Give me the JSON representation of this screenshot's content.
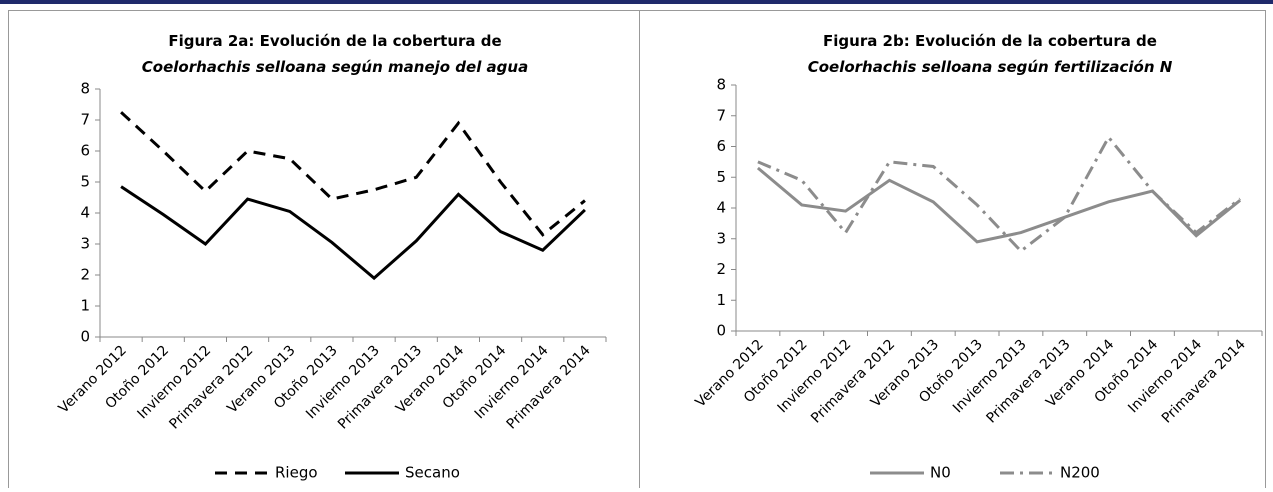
{
  "chart_data": [
    {
      "type": "line",
      "title": [
        "Figura 2a: Evolución de la cobertura de",
        "Coelorhachis selloana según manejo del agua"
      ],
      "categories": [
        "Verano 2012",
        "Otoño 2012",
        "Invierno 2012",
        "Primavera 2012",
        "Verano 2013",
        "Otoño 2013",
        "Invierno 2013",
        "Primavera 2013",
        "Verano 2014",
        "Otoño 2014",
        "Invierno 2014",
        "Primavera 2014"
      ],
      "series": [
        {
          "name": "Riego",
          "color": "#000000",
          "dash": "dashed",
          "values": [
            7.25,
            6.0,
            4.7,
            6.0,
            5.75,
            4.45,
            4.75,
            5.15,
            6.9,
            5.0,
            3.3,
            4.4
          ]
        },
        {
          "name": "Secano",
          "color": "#000000",
          "dash": "solid",
          "values": [
            4.85,
            3.95,
            3.0,
            4.45,
            4.05,
            3.05,
            1.9,
            3.1,
            4.6,
            3.4,
            2.8,
            4.1
          ]
        }
      ],
      "ylim": [
        0,
        8
      ],
      "yticks": [
        0,
        1,
        2,
        3,
        4,
        5,
        6,
        7,
        8
      ],
      "grid": false,
      "legend": "bottom"
    },
    {
      "type": "line",
      "title": [
        "Figura 2b: Evolución de la cobertura de",
        "Coelorhachis selloana según fertilización  N"
      ],
      "categories": [
        "Verano 2012",
        "Otoño 2012",
        "Invierno 2012",
        "Primavera 2012",
        "Verano 2013",
        "Otoño 2013",
        "Invierno 2013",
        "Primavera 2013",
        "Verano 2014",
        "Otoño 2014",
        "Invierno 2014",
        "Primavera 2014"
      ],
      "series": [
        {
          "name": "N0",
          "color": "#8c8c8c",
          "dash": "solid",
          "values": [
            5.3,
            4.1,
            3.9,
            4.9,
            4.2,
            2.9,
            3.2,
            3.7,
            4.2,
            4.55,
            3.1,
            4.25
          ]
        },
        {
          "name": "N200",
          "color": "#8c8c8c",
          "dash": "dash-dot",
          "values": [
            5.5,
            4.9,
            3.2,
            5.5,
            5.35,
            4.1,
            2.6,
            3.7,
            6.3,
            4.55,
            3.2,
            4.3
          ]
        }
      ],
      "ylim": [
        0,
        8
      ],
      "yticks": [
        0,
        1,
        2,
        3,
        4,
        5,
        6,
        7,
        8
      ],
      "grid": false,
      "legend": "bottom"
    }
  ]
}
